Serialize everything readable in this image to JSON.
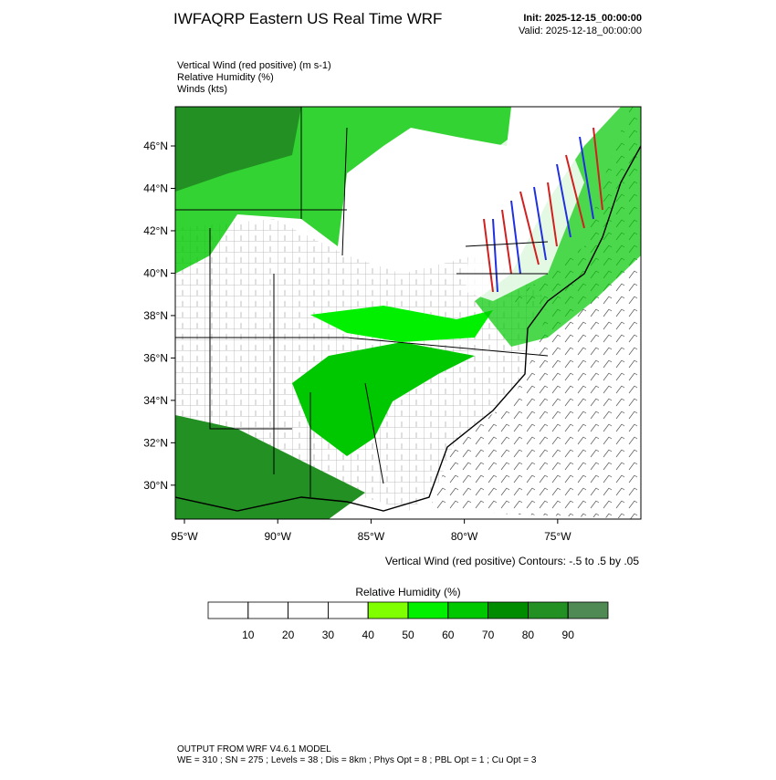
{
  "header": {
    "title": "IWFAQRP Eastern US Real Time WRF",
    "init": "Init: 2025-12-15_00:00:00",
    "valid": "Valid: 2025-12-18_00:00:00"
  },
  "fields": [
    "Vertical Wind (red positive)   (m s-1)",
    "Relative Humidity   (%)",
    "Winds   (kts)"
  ],
  "map": {
    "lonlim": [
      -95.49,
      -70.54
    ],
    "latlim": [
      28.4,
      47.85
    ],
    "lon_ticks": [
      {
        "value": -95,
        "label": "95°W"
      },
      {
        "value": -90,
        "label": "90°W"
      },
      {
        "value": -85,
        "label": "85°W"
      },
      {
        "value": -80,
        "label": "80°W"
      },
      {
        "value": -75,
        "label": "75°W"
      }
    ],
    "lat_ticks": [
      {
        "value": 30,
        "label": "30°N"
      },
      {
        "value": 32,
        "label": "32°N"
      },
      {
        "value": 34,
        "label": "34°N"
      },
      {
        "value": 36,
        "label": "36°N"
      },
      {
        "value": 38,
        "label": "38°N"
      },
      {
        "value": 40,
        "label": "40°N"
      },
      {
        "value": 42,
        "label": "42°N"
      },
      {
        "value": 44,
        "label": "44°N"
      },
      {
        "value": 46,
        "label": "46°N"
      }
    ],
    "contour_info": "Vertical Wind (red positive) Contours: -.5 to .5 by .05"
  },
  "colorbar": {
    "title": "Relative Humidity  (%)",
    "range": [
      0,
      100
    ],
    "ticks": [
      10,
      20,
      30,
      40,
      50,
      60,
      70,
      80,
      90
    ],
    "colors": [
      "#ffffff",
      "#ffffff",
      "#ffffff",
      "#ffffff",
      "#80ff00",
      "#00f000",
      "#00c800",
      "#008c00",
      "#229022",
      "#4f8a55"
    ]
  },
  "footer": {
    "line1": "OUTPUT FROM WRF V4.6.1 MODEL",
    "line2": "WE = 310 ; SN = 275 ; Levels = 38 ; Dis = 8km ; Phys Opt = 8 ; PBL Opt = 1 ; Cu Opt = 3"
  }
}
